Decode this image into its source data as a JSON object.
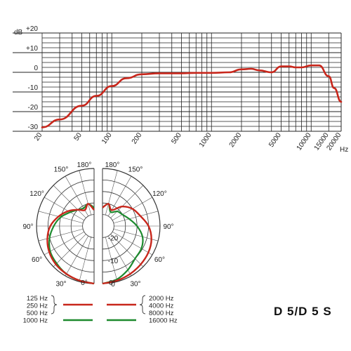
{
  "chart_data": [
    {
      "type": "line",
      "ylabel": "dB",
      "xlabel": "Hz",
      "x_scale": "log",
      "xlim": [
        20,
        20000
      ],
      "ylim": [
        -30,
        20
      ],
      "y_ticks": [
        "+20",
        "+10",
        "0",
        "-10",
        "-20",
        "-30"
      ],
      "x_ticks": [
        "20",
        "50",
        "100",
        "200",
        "500",
        "1000",
        "2000",
        "5000",
        "10000",
        "15000",
        "20000"
      ],
      "grid": true,
      "series": [
        {
          "color": "#c8261b",
          "x": [
            20,
            30,
            50,
            70,
            100,
            140,
            200,
            300,
            500,
            700,
            1000,
            1500,
            2000,
            2500,
            3000,
            4000,
            5000,
            6000,
            7000,
            8000,
            10000,
            12000,
            15000,
            17000,
            20000
          ],
          "y": [
            -28,
            -24,
            -17,
            -12,
            -7,
            -3,
            -1,
            -0.5,
            -0.5,
            -0.3,
            -0.3,
            0,
            1.5,
            1.8,
            1,
            0,
            3,
            3,
            2.5,
            2.5,
            3.5,
            3.5,
            -2,
            -8,
            -15
          ]
        }
      ]
    },
    {
      "type": "polar",
      "angle_labels": [
        "180°",
        "150°",
        "120°",
        "90°",
        "60°",
        "30°",
        "0°"
      ],
      "radius_labels": [
        "-20",
        "-10",
        "0"
      ],
      "legend": [
        {
          "labels": [
            "125 Hz",
            "250 Hz",
            "500 Hz"
          ],
          "color": "#c8261b"
        },
        {
          "labels": [
            "1000 Hz"
          ],
          "color": "#1d8a2e"
        },
        {
          "labels": [
            "2000 Hz",
            "4000 Hz",
            "8000 Hz"
          ],
          "color": "#c8261b"
        },
        {
          "labels": [
            "16000 Hz"
          ],
          "color": "#1d8a2e"
        }
      ],
      "left_red_r_db": [
        0,
        -0.5,
        -1,
        -1.5,
        -2.5,
        -4,
        -6,
        -9,
        -12,
        -15,
        -17,
        -15,
        -18
      ],
      "left_green_r_db": [
        0,
        -0.5,
        -1,
        -2,
        -3,
        -5,
        -7.5,
        -10,
        -13,
        -15,
        -16,
        -15,
        -17
      ],
      "right_red_r_db": [
        0,
        -0.5,
        -1,
        -1.5,
        -2,
        -3,
        -5,
        -8,
        -10,
        -13,
        -17,
        -15,
        -17
      ],
      "right_green_r_db": [
        0,
        -1,
        -3,
        -5,
        -5.5,
        -7,
        -10,
        -13,
        -15,
        -16,
        -18,
        -15,
        -17
      ]
    }
  ],
  "model_name": "D 5/D 5 S"
}
